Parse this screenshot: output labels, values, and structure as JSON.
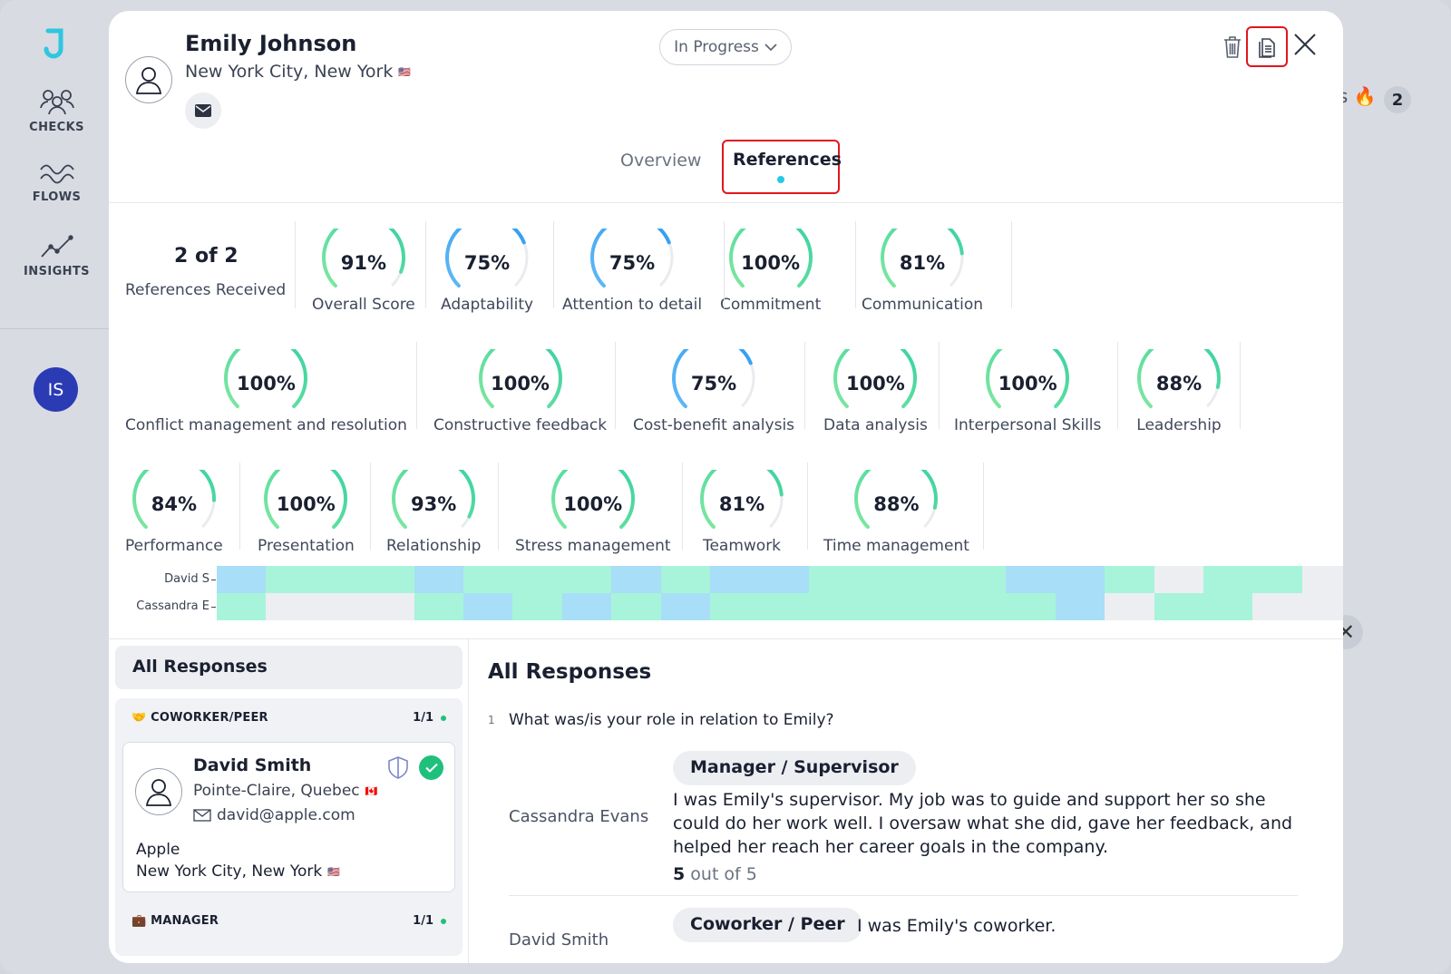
{
  "sidebar": {
    "items": [
      {
        "label": "CHECKS",
        "icon": "users-icon"
      },
      {
        "label": "FLOWS",
        "icon": "waves-icon"
      },
      {
        "label": "INSIGHTS",
        "icon": "trend-icon"
      }
    ],
    "user_initials": "IS"
  },
  "background": {
    "chip_text": "ts 🔥",
    "chip_count": "2",
    "close_glyph": "✕"
  },
  "candidate": {
    "name": "Emily Johnson",
    "location": "New York City, New York",
    "flag": "🇺🇸"
  },
  "status": {
    "value": "In Progress"
  },
  "tabs": [
    {
      "label": "Overview"
    },
    {
      "label": "References",
      "active": true
    }
  ],
  "summary": {
    "received": "2 of 2",
    "received_label": "References Received"
  },
  "scores": [
    {
      "label": "Overall Score",
      "pct": "91%",
      "value": 91,
      "color": "green"
    },
    {
      "label": "Adaptability",
      "pct": "75%",
      "value": 75,
      "color": "blue"
    },
    {
      "label": "Attention to detail",
      "pct": "75%",
      "value": 75,
      "color": "blue"
    },
    {
      "label": "Commitment",
      "pct": "100%",
      "value": 100,
      "color": "green"
    },
    {
      "label": "Communication",
      "pct": "81%",
      "value": 81,
      "color": "green"
    },
    {
      "label": "Conflict management and resolution",
      "pct": "100%",
      "value": 100,
      "color": "green"
    },
    {
      "label": "Constructive feedback",
      "pct": "100%",
      "value": 100,
      "color": "green"
    },
    {
      "label": "Cost-benefit analysis",
      "pct": "75%",
      "value": 75,
      "color": "blue"
    },
    {
      "label": "Data analysis",
      "pct": "100%",
      "value": 100,
      "color": "green"
    },
    {
      "label": "Interpersonal Skills",
      "pct": "100%",
      "value": 100,
      "color": "green"
    },
    {
      "label": "Leadership",
      "pct": "88%",
      "value": 88,
      "color": "green"
    },
    {
      "label": "Performance",
      "pct": "84%",
      "value": 84,
      "color": "green"
    },
    {
      "label": "Presentation",
      "pct": "100%",
      "value": 100,
      "color": "green"
    },
    {
      "label": "Relationship",
      "pct": "93%",
      "value": 93,
      "color": "green"
    },
    {
      "label": "Stress management",
      "pct": "100%",
      "value": 100,
      "color": "green"
    },
    {
      "label": "Teamwork",
      "pct": "81%",
      "value": 81,
      "color": "green"
    },
    {
      "label": "Time management",
      "pct": "88%",
      "value": 88,
      "color": "green"
    }
  ],
  "heatmap": {
    "rows": [
      {
        "label": "David S",
        "cells": [
          "b",
          "g",
          "g",
          "g",
          "b",
          "g",
          "g",
          "g",
          "b",
          "g",
          "b",
          "b",
          "g",
          "g",
          "g",
          "g",
          "b",
          "b",
          "g",
          "e",
          "g",
          "g",
          "e"
        ]
      },
      {
        "label": "Cassandra E",
        "cells": [
          "g",
          "e",
          "e",
          "e",
          "g",
          "b",
          "g",
          "b",
          "g",
          "b",
          "g",
          "g",
          "g",
          "g",
          "g",
          "g",
          "g",
          "b",
          "e",
          "g",
          "g",
          "e",
          "e"
        ]
      }
    ],
    "colors": {
      "g": "#a8f4da",
      "b": "#a8def7",
      "e": "#eceef2"
    }
  },
  "left": {
    "title": "All Responses",
    "groups": [
      {
        "icon": "🤝",
        "label": "COWORKER/PEER",
        "count": "1/1"
      },
      {
        "icon": "💼",
        "label": "MANAGER",
        "count": "1/1"
      }
    ],
    "card": {
      "name": "David Smith",
      "location": "Pointe-Claire, Quebec",
      "flag": "🇨🇦",
      "email": "david@apple.com",
      "company": "Apple",
      "company_location": "New York City, New York",
      "company_flag": "🇺🇸"
    }
  },
  "right": {
    "title": "All Responses",
    "question_number": "1",
    "question": "What was/is your role in relation to Emily?",
    "responses": [
      {
        "name": "Cassandra Evans",
        "role": "Manager / Supervisor",
        "answer": "I was Emily's supervisor. My job was to guide and support her so she could do her work well. I oversaw what she did, gave her feedback, and helped her reach her career goals in the company.",
        "score": "5",
        "score_suffix": " out of 5"
      },
      {
        "name": "David Smith",
        "role": "Coworker / Peer",
        "answer": "I was Emily's coworker."
      }
    ]
  }
}
